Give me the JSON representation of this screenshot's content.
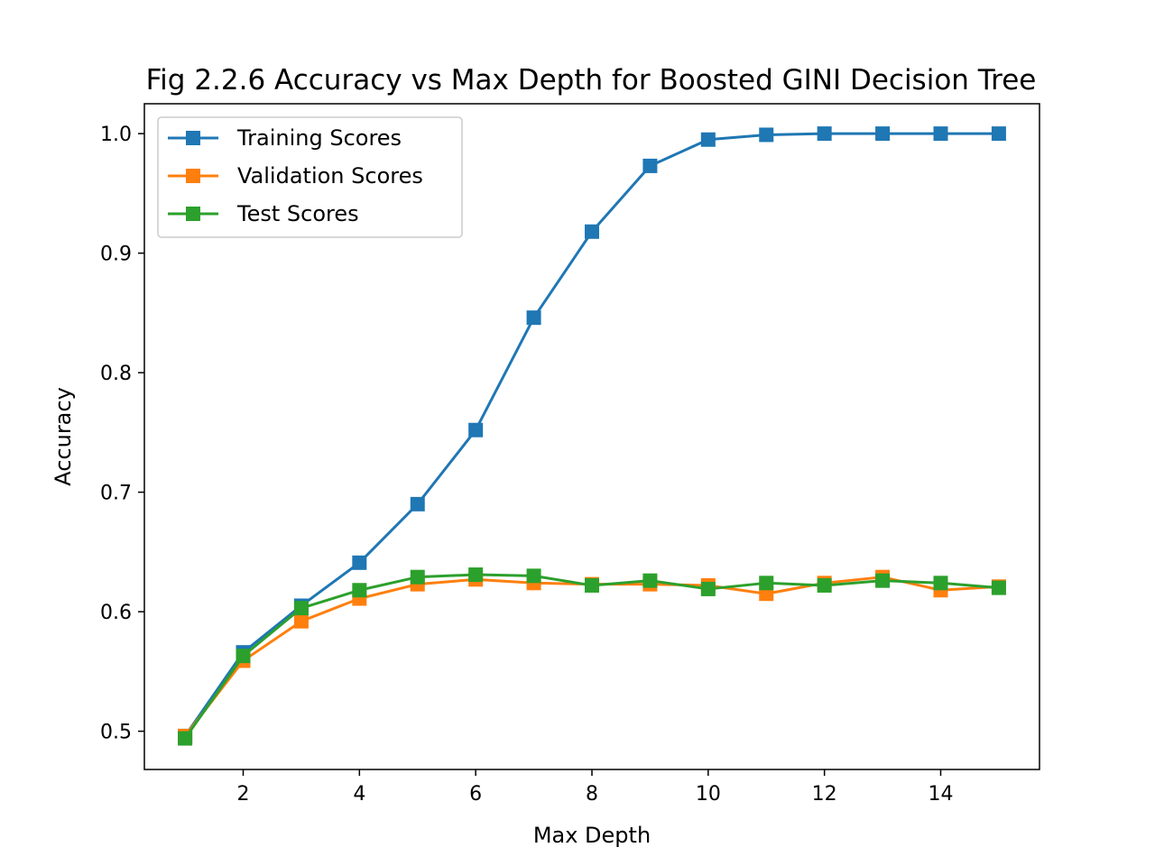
{
  "chart_data": {
    "type": "line",
    "title": "Fig 2.2.6 Accuracy vs Max Depth for Boosted GINI Decision Tree",
    "xlabel": "Max Depth",
    "ylabel": "Accuracy",
    "xlim": [
      0.3,
      15.7
    ],
    "ylim": [
      0.468,
      1.025
    ],
    "xticks": [
      2,
      4,
      6,
      8,
      10,
      12,
      14
    ],
    "yticks": [
      0.5,
      0.6,
      0.7,
      0.8,
      0.9,
      1.0
    ],
    "xtick_labels": [
      "2",
      "4",
      "6",
      "8",
      "10",
      "12",
      "14"
    ],
    "ytick_labels": [
      "0.5",
      "0.6",
      "0.7",
      "0.8",
      "0.9",
      "1.0"
    ],
    "grid": false,
    "legend_position": "top-left",
    "marker": "square",
    "x": [
      1,
      2,
      3,
      4,
      5,
      6,
      7,
      8,
      9,
      10,
      11,
      12,
      13,
      14,
      15
    ],
    "series": [
      {
        "name": "Training Scores",
        "color": "#1f77b4",
        "values": [
          0.496,
          0.566,
          0.605,
          0.641,
          0.69,
          0.752,
          0.846,
          0.918,
          0.973,
          0.995,
          0.999,
          1.0,
          1.0,
          1.0,
          1.0
        ]
      },
      {
        "name": "Validation Scores",
        "color": "#ff7f0e",
        "values": [
          0.496,
          0.559,
          0.592,
          0.611,
          0.623,
          0.627,
          0.624,
          0.623,
          0.623,
          0.622,
          0.615,
          0.624,
          0.629,
          0.618,
          0.621
        ]
      },
      {
        "name": "Test Scores",
        "color": "#2ca02c",
        "values": [
          0.494,
          0.563,
          0.603,
          0.618,
          0.629,
          0.631,
          0.63,
          0.622,
          0.626,
          0.619,
          0.624,
          0.622,
          0.626,
          0.624,
          0.62
        ]
      }
    ]
  }
}
